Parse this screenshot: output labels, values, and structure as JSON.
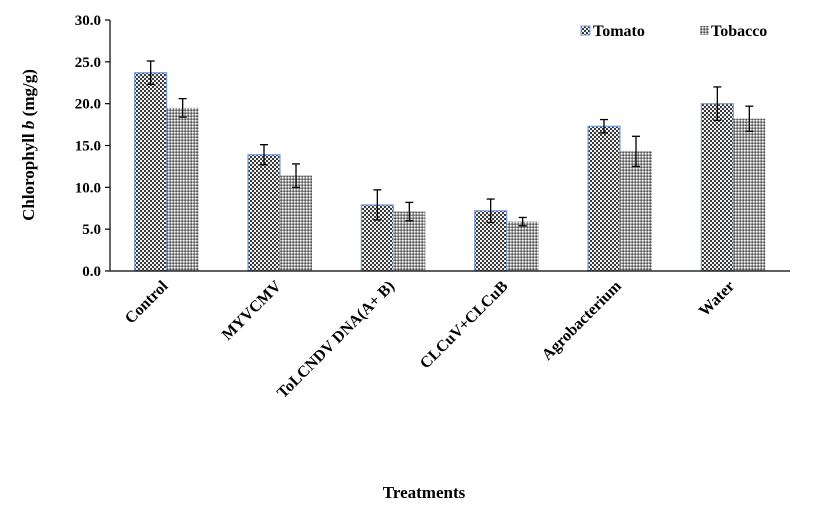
{
  "chart_data": {
    "type": "bar",
    "categories": [
      "Control",
      "MYVCMV",
      "ToLCNDV DNA(A+ B)",
      "CLCuV+CLCuB",
      "Agrobacterium",
      "Water"
    ],
    "series": [
      {
        "name": "Tomato",
        "values": [
          23.7,
          13.9,
          7.9,
          7.2,
          17.3,
          20.0
        ],
        "errors": [
          1.4,
          1.2,
          1.8,
          1.4,
          0.8,
          2.0
        ]
      },
      {
        "name": "Tobacco",
        "values": [
          19.5,
          11.4,
          7.1,
          5.9,
          14.3,
          18.2
        ],
        "errors": [
          1.1,
          1.4,
          1.1,
          0.5,
          1.8,
          1.5
        ]
      }
    ],
    "y_ticks": [
      "0.0",
      "5.0",
      "10.0",
      "15.0",
      "20.0",
      "25.0",
      "30.0"
    ],
    "ylim": [
      0,
      30
    ],
    "xlabel": "Treatments",
    "ylabel_prefix": "Chlorophyll ",
    "ylabel_italic": "b",
    "ylabel_suffix": " (mg/g)",
    "legend_position": "top-right",
    "grid": false
  }
}
